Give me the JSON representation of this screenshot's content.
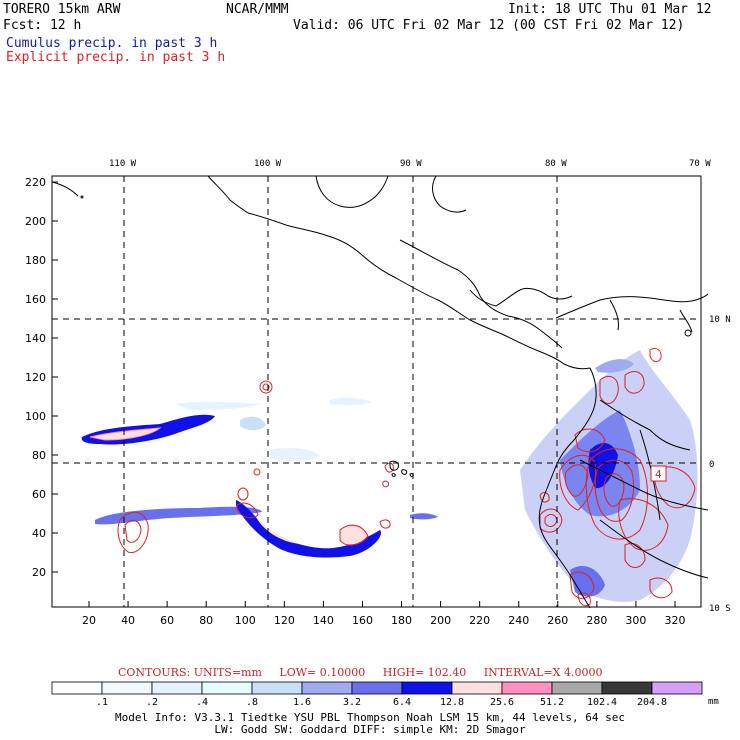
{
  "header": {
    "model": "TORERO  15km ARW",
    "center": "NCAR/MMM",
    "init": "Init: 18 UTC Thu 01 Mar 12",
    "fcst": "Fcst:   12 h",
    "valid": "Valid: 06 UTC Fri 02 Mar 12 (00 CST Fri 02 Mar 12)",
    "line1": "Cumulus precip. in past 3 h",
    "line2": "Explicit precip. in past 3 h",
    "line1_color": "#1a1a9a",
    "line2_color": "#dd2222"
  },
  "map": {
    "top_labels": [
      "110 W",
      "100 W",
      "90 W",
      "80 W",
      "70 W"
    ],
    "right_labels": [
      "10 N",
      "0",
      "10 S"
    ],
    "y_ticks": [
      "220",
      "200",
      "180",
      "160",
      "140",
      "120",
      "100",
      "80",
      "60",
      "40",
      "20"
    ],
    "x_ticks": [
      "20",
      "40",
      "60",
      "80",
      "100",
      "120",
      "140",
      "160",
      "180",
      "200",
      "220",
      "240",
      "260",
      "280",
      "300",
      "320"
    ],
    "box_label": "4"
  },
  "contours_info": {
    "contours": "CONTOURS:  UNITS=mm",
    "low": "LOW= 0.10000",
    "high": "HIGH=  102.40",
    "interval": "INTERVAL=X  4.0000"
  },
  "colorbar": {
    "labels": [
      ".1",
      ".2",
      ".4",
      ".8",
      "1.6",
      "3.2",
      "6.4",
      "12.8",
      "25.6",
      "51.2",
      "102.4",
      "204.8"
    ],
    "unit": "mm",
    "colors": [
      "#ffffff",
      "#f4f8ff",
      "#e6f2ff",
      "#e6fdfd",
      "#c8e0f8",
      "#a0aaf0",
      "#6870ee",
      "#1010e8",
      "#ffe0e0",
      "#ff90c0",
      "#a8a8a8",
      "#383838",
      "#d4a0f8"
    ]
  },
  "footer": {
    "line1": "Model Info: V3.3.1    Tiedtke YSU PBL  Thompson    Noah LSM  15 km,   44 levels,   64 sec",
    "line2": "LW: Godd SW: Goddard DIFF: simple KM: 2D Smagor"
  }
}
